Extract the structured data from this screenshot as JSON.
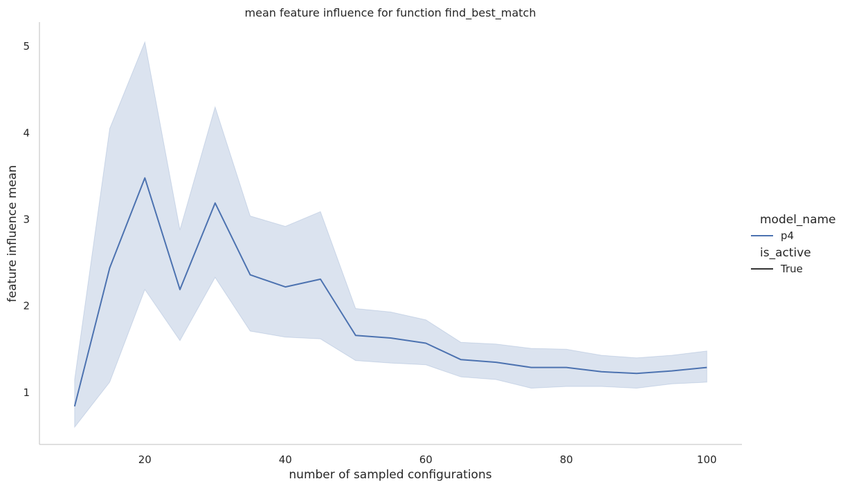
{
  "chart_data": {
    "type": "line",
    "title": "mean feature influence for function find_best_match",
    "xlabel": "number of sampled configurations",
    "ylabel": "feature influence mean",
    "xlim": [
      5,
      105
    ],
    "ylim": [
      0.4,
      5.28
    ],
    "xticks": [
      20,
      40,
      60,
      80,
      100
    ],
    "yticks": [
      1,
      2,
      3,
      4,
      5
    ],
    "grid": false,
    "legend_placement": "right",
    "x": [
      10,
      15,
      20,
      25,
      30,
      35,
      40,
      45,
      50,
      55,
      60,
      65,
      70,
      75,
      80,
      85,
      90,
      95,
      100
    ],
    "series": [
      {
        "name": "p4",
        "color": "#4c72b0",
        "values": [
          0.84,
          2.44,
          3.48,
          2.19,
          3.19,
          2.36,
          2.22,
          2.31,
          1.66,
          1.63,
          1.57,
          1.38,
          1.35,
          1.29,
          1.29,
          1.24,
          1.22,
          1.25,
          1.29
        ],
        "ci_lower": [
          0.6,
          1.12,
          2.19,
          1.6,
          2.33,
          1.71,
          1.64,
          1.62,
          1.37,
          1.34,
          1.32,
          1.18,
          1.15,
          1.05,
          1.07,
          1.07,
          1.05,
          1.1,
          1.12
        ],
        "ci_upper": [
          1.15,
          4.05,
          5.05,
          2.88,
          4.3,
          3.04,
          2.92,
          3.09,
          1.97,
          1.93,
          1.84,
          1.58,
          1.56,
          1.51,
          1.5,
          1.43,
          1.4,
          1.43,
          1.48
        ]
      }
    ],
    "legend": {
      "title1": "model_name",
      "item1": "p4",
      "title2": "is_active",
      "item2": "True"
    },
    "colors": {
      "line": "#4c72b0",
      "band": "#4c72b0",
      "axis": "#cccccc",
      "text": "#262626",
      "style_marker": "#333333"
    }
  }
}
